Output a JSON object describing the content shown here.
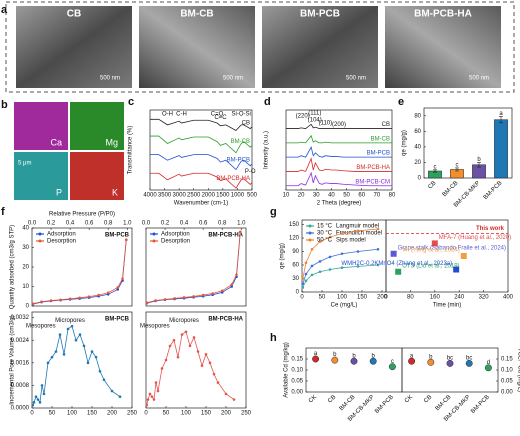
{
  "panels": [
    "a",
    "b",
    "c",
    "d",
    "e",
    "f",
    "g",
    "h"
  ],
  "sem": [
    {
      "label": "CB",
      "scale": "500 nm"
    },
    {
      "label": "BM-CB",
      "scale": "500 nm"
    },
    {
      "label": "BM-PCB",
      "scale": "500 nm"
    },
    {
      "label": "BM-PCB-HA",
      "scale": "500 nm"
    }
  ],
  "eds": [
    "Ca",
    "Mg",
    "P",
    "K"
  ],
  "eds_scale": "5 μm",
  "chart_data": [
    {
      "type": "line",
      "xlabel": "Wavenumber (cm-1)",
      "ylabel": "Transmittance (%)",
      "xlim": [
        4000,
        500
      ],
      "xticks": [
        4000,
        3500,
        3000,
        2500,
        2000,
        1500,
        1000,
        500
      ],
      "ylim": [
        0,
        4.3
      ],
      "label_series": true,
      "x": [
        4000,
        3700,
        3400,
        3000,
        2920,
        2500,
        2000,
        1700,
        1580,
        1400,
        1050,
        870,
        780,
        560,
        500
      ],
      "series": [
        {
          "name": "CB",
          "color": "#222222",
          "values": [
            3.8,
            3.8,
            3.5,
            3.7,
            3.6,
            3.75,
            3.75,
            3.6,
            3.45,
            3.5,
            3.2,
            3.5,
            3.5,
            3.3,
            3.4
          ]
        },
        {
          "name": "BM-CB",
          "color": "#2a9d2a",
          "values": [
            2.9,
            2.9,
            2.5,
            2.8,
            2.7,
            2.85,
            2.85,
            2.6,
            2.4,
            2.5,
            2.0,
            2.5,
            2.6,
            2.3,
            2.4
          ]
        },
        {
          "name": "BM-PCB",
          "color": "#1f4fd1",
          "values": [
            1.9,
            1.9,
            1.6,
            1.85,
            1.75,
            1.9,
            1.9,
            1.7,
            1.5,
            1.6,
            1.1,
            1.55,
            1.6,
            1.3,
            1.4
          ]
        },
        {
          "name": "BM-PCB-HA",
          "color": "#d62728",
          "values": [
            0.9,
            0.9,
            0.55,
            0.85,
            0.75,
            0.9,
            0.9,
            0.7,
            0.5,
            0.6,
            0.1,
            0.55,
            0.6,
            0.3,
            0.4
          ]
        }
      ],
      "annotations": [
        {
          "text": "O-H",
          "x": 3400,
          "y": 4.1
        },
        {
          "text": "C-H",
          "x": 2920,
          "y": 4.1
        },
        {
          "text": "C=O",
          "x": 1700,
          "y": 4.1
        },
        {
          "text": "C=C",
          "x": 1580,
          "y": 3.9
        },
        {
          "text": "Si-O-Si",
          "x": 870,
          "y": 4.1
        },
        {
          "text": "P-O",
          "x": 560,
          "y": 1.0
        }
      ]
    },
    {
      "type": "line",
      "xlabel": "2 Theta (degree)",
      "ylabel": "Intensity (a.u.)",
      "xlim": [
        10,
        80
      ],
      "xticks": [
        10,
        20,
        30,
        40,
        50,
        60,
        70,
        80
      ],
      "ylim": [
        0,
        5.6
      ],
      "label_series": true,
      "x": [
        10,
        18,
        20,
        23,
        26.6,
        28,
        29.4,
        32,
        34,
        36,
        40,
        43,
        48,
        55,
        65,
        80
      ],
      "series": [
        {
          "name": "CB",
          "color": "#222222",
          "values": [
            4.3,
            4.3,
            4.35,
            4.3,
            4.6,
            4.35,
            4.4,
            4.3,
            4.3,
            4.3,
            4.3,
            4.3,
            4.3,
            4.3,
            4.3,
            4.3
          ]
        },
        {
          "name": "BM-CB",
          "color": "#2a9d2a",
          "values": [
            3.3,
            3.3,
            3.35,
            3.3,
            3.8,
            3.35,
            3.45,
            3.3,
            3.3,
            3.35,
            3.3,
            3.3,
            3.3,
            3.3,
            3.3,
            3.3
          ]
        },
        {
          "name": "BM-PCB",
          "color": "#1f4fd1",
          "values": [
            2.3,
            2.3,
            2.4,
            2.3,
            3.0,
            2.4,
            2.6,
            2.35,
            2.3,
            2.4,
            2.35,
            2.35,
            2.3,
            2.3,
            2.3,
            2.3
          ]
        },
        {
          "name": "BM-PCB-HA",
          "color": "#d62728",
          "values": [
            1.3,
            1.3,
            1.4,
            1.3,
            2.2,
            1.4,
            1.9,
            1.4,
            1.35,
            1.45,
            1.4,
            1.4,
            1.35,
            1.3,
            1.3,
            1.3
          ]
        },
        {
          "name": "BM-PCB-CM",
          "color": "#8a2be2",
          "values": [
            0.3,
            0.3,
            0.45,
            0.35,
            1.2,
            0.5,
            1.0,
            0.45,
            0.4,
            0.5,
            0.45,
            0.45,
            0.4,
            0.35,
            0.3,
            0.3
          ]
        }
      ],
      "annotations": [
        {
          "text": "(220)",
          "x": 21,
          "y": 5.2
        },
        {
          "text": "(111)",
          "x": 29,
          "y": 5.4
        },
        {
          "text": "(104)",
          "x": 29,
          "y": 4.9
        },
        {
          "text": "(110)",
          "x": 36,
          "y": 4.7
        },
        {
          "text": "(200)",
          "x": 45,
          "y": 4.6
        }
      ]
    },
    {
      "type": "bar",
      "ylabel": "qe (mg/g)",
      "categories": [
        "CB",
        "BM-CB",
        "BM-CB-MKP",
        "BM-PCB"
      ],
      "values": [
        9,
        11,
        17,
        75
      ],
      "errors": [
        1.5,
        2,
        3,
        4
      ],
      "colors": [
        "#2ca25f",
        "#f28e2b",
        "#6a51a3",
        "#1f77b4"
      ],
      "ylim": [
        0,
        90
      ],
      "yticks": [
        0,
        20,
        40,
        60,
        80
      ],
      "rotate_labels": true,
      "annotations": [
        {
          "text": "c",
          "x": "CB",
          "y": 14
        },
        {
          "text": "c",
          "x": "BM-CB",
          "y": 17
        },
        {
          "text": "b",
          "x": "BM-CB-MKP",
          "y": 24
        },
        {
          "text": "a",
          "x": "BM-PCB",
          "y": 83
        }
      ]
    },
    {
      "type": "line",
      "markers": true,
      "x_axis": "top",
      "title": "BM-PCB",
      "xlabel": "Relative Pressure (P/P0)",
      "ylabel": "Quantity adsorbed (cm3/g STP)",
      "legend": "top-left",
      "xlim": [
        0,
        1.05
      ],
      "xticks": [
        {
          "value": 0,
          "label": "0.0"
        },
        {
          "value": 0.2,
          "label": "0.2"
        },
        {
          "value": 0.4,
          "label": "0.4"
        },
        {
          "value": 0.6,
          "label": "0.6"
        },
        {
          "value": 0.8,
          "label": "0.8"
        },
        {
          "value": 1,
          "label": "1.0"
        }
      ],
      "ylim": [
        0,
        40
      ],
      "yticks": [
        0,
        10,
        20,
        30,
        40
      ],
      "x": [
        0.01,
        0.1,
        0.2,
        0.3,
        0.4,
        0.5,
        0.6,
        0.7,
        0.8,
        0.9,
        0.95,
        0.99
      ],
      "series": [
        {
          "name": "Adsorption",
          "color": "#1f4fd1",
          "values": [
            1,
            2,
            2.6,
            3,
            3.4,
            3.8,
            4.3,
            5,
            6,
            8.5,
            13,
            34
          ]
        },
        {
          "name": "Desorption",
          "color": "#e8553a",
          "values": [
            1.2,
            2.2,
            2.8,
            3.2,
            3.7,
            4.2,
            4.8,
            5.6,
            6.8,
            9.5,
            14,
            34
          ]
        }
      ]
    },
    {
      "type": "line",
      "markers": true,
      "x_axis": "top",
      "title": "BM-PCB-HA",
      "legend": "top-left",
      "xlim": [
        0,
        1.05
      ],
      "xticks": [
        {
          "value": 0,
          "label": "0.0"
        },
        {
          "value": 0.2,
          "label": "0.2"
        },
        {
          "value": 0.4,
          "label": "0.4"
        },
        {
          "value": 0.6,
          "label": "0.6"
        },
        {
          "value": 0.8,
          "label": "0.8"
        },
        {
          "value": 1,
          "label": "1.0"
        }
      ],
      "ylim": [
        0,
        40
      ],
      "x": [
        0.01,
        0.1,
        0.2,
        0.3,
        0.4,
        0.5,
        0.6,
        0.7,
        0.8,
        0.9,
        0.95,
        0.99
      ],
      "series": [
        {
          "name": "Adsorption",
          "color": "#1f4fd1",
          "values": [
            1.5,
            2.6,
            3.2,
            3.6,
            4,
            4.5,
            5,
            5.8,
            7,
            10,
            15,
            38
          ]
        },
        {
          "name": "Desorption",
          "color": "#e8553a",
          "values": [
            1.7,
            2.8,
            3.4,
            3.9,
            4.4,
            4.9,
            5.6,
            6.4,
            7.8,
            11,
            16,
            38
          ]
        }
      ]
    },
    {
      "type": "line",
      "markers": true,
      "title": "BM-PCB",
      "ylabel": "Incremental Pore Volume (cm3/g)",
      "xlim": [
        0,
        250
      ],
      "xticks": [
        0,
        50,
        100,
        150,
        200,
        250
      ],
      "ylim": [
        0,
        0.0034
      ],
      "yticks": [
        {
          "value": 0,
          "label": "0.0000"
        },
        {
          "value": 0.0008,
          "label": "0.0008"
        },
        {
          "value": 0.0016,
          "label": "0.0016"
        },
        {
          "value": 0.0024,
          "label": "0.0024"
        },
        {
          "value": 0.0032,
          "label": "0.0032"
        }
      ],
      "x": [
        2,
        5,
        10,
        15,
        20,
        25,
        30,
        40,
        50,
        60,
        70,
        80,
        90,
        100,
        110,
        120,
        130,
        140,
        150,
        160,
        170,
        180,
        200,
        220
      ],
      "series": [
        {
          "name": "BM-PCB",
          "color": "#1f77b4",
          "values": [
            0.0001,
            0.0002,
            0.0004,
            0.0003,
            0.0002,
            0.0008,
            0.0005,
            0.0016,
            0.0018,
            0.002,
            0.0026,
            0.0019,
            0.0028,
            0.0029,
            0.0024,
            0.0026,
            0.0022,
            0.0016,
            0.002,
            0.0018,
            0.0013,
            0.001,
            0.0006,
            0.0004
          ]
        }
      ],
      "annotations": [
        {
          "text": "Mesopores",
          "x": 22,
          "y": 0.0029
        },
        {
          "text": "Micropores",
          "x": 95,
          "y": 0.0031
        }
      ]
    },
    {
      "type": "line",
      "markers": true,
      "title": "BM-PCB-HA",
      "xlim": [
        0,
        250
      ],
      "xticks": [
        0,
        50,
        100,
        150,
        200,
        250
      ],
      "ylim": [
        0,
        0.0034
      ],
      "x": [
        2,
        5,
        10,
        15,
        20,
        25,
        30,
        40,
        50,
        60,
        70,
        80,
        90,
        100,
        110,
        120,
        130,
        140,
        150,
        160,
        170,
        180,
        200,
        220
      ],
      "series": [
        {
          "name": "BM-PCB-HA",
          "color": "#e8554f",
          "values": [
            0.0001,
            0.0003,
            0.0005,
            0.0004,
            0.0003,
            0.0009,
            0.0006,
            0.0014,
            0.0017,
            0.0022,
            0.0024,
            0.0018,
            0.0026,
            0.0027,
            0.0022,
            0.0025,
            0.002,
            0.0015,
            0.0019,
            0.0016,
            0.0012,
            0.0009,
            0.0005,
            0.0003
          ]
        }
      ],
      "annotations": [
        {
          "text": "Mesopores",
          "x": 22,
          "y": 0.0029
        },
        {
          "text": "Micropores",
          "x": 95,
          "y": 0.0031
        }
      ]
    },
    {
      "type": "line",
      "markers": true,
      "legend": "top-left",
      "xlabel": "Ce (mg/L)",
      "ylabel": "qe (mg/g)",
      "xlim": [
        0,
        210
      ],
      "xticks": [
        0,
        50,
        100,
        150,
        200
      ],
      "ylim": [
        0,
        160
      ],
      "yticks": [
        0,
        30,
        60,
        90,
        120,
        150
      ],
      "x": [
        2,
        10,
        25,
        45,
        70,
        100,
        140,
        190
      ],
      "series": [
        {
          "name": "15 °C",
          "model": "Langmuir model",
          "color": "#3aa89b",
          "values": [
            10,
            25,
            38,
            45,
            50,
            54,
            57,
            60
          ]
        },
        {
          "name": "30 °C",
          "model": "Freundlich model",
          "color": "#3a6fd8",
          "values": [
            18,
            40,
            58,
            68,
            78,
            85,
            90,
            95
          ]
        },
        {
          "name": "50 °C",
          "model": "Sips model",
          "color": "#f08030",
          "values": [
            30,
            65,
            95,
            112,
            122,
            130,
            136,
            140
          ]
        }
      ]
    },
    {
      "type": "scatter",
      "xlabel": "Time (min)",
      "xlim": [
        0,
        400
      ],
      "xticks": [
        0,
        80,
        160,
        240,
        320,
        400
      ],
      "ylim": [
        0,
        160
      ],
      "reference": {
        "label": "This work",
        "y": 130,
        "color": "#d62728"
      },
      "points": [
        {
          "name": "MFA-7 (Huang et al., 2020)",
          "x": 160,
          "y": 108,
          "color": "#e84a4a"
        },
        {
          "name": "Grape stalk (Sabando Fraile et al., 2024)",
          "x": 25,
          "y": 85,
          "color": "#5a5ad6"
        },
        {
          "name": "MI (Yang et al., 2024)",
          "x": 255,
          "y": 80,
          "color": "#f0a040"
        },
        {
          "name": "OTS (Liu et al., 2019)",
          "x": 40,
          "y": 45,
          "color": "#2ca25f"
        },
        {
          "name": "WMH2C-0.2KMnO4 (Zhang et al., 2023a)",
          "x": 230,
          "y": 50,
          "color": "#1f4fd1"
        }
      ]
    },
    {
      "type": "scatter",
      "ylabel": "Available Cd (mg/kg)",
      "categories": [
        "CK",
        "CB",
        "BM-CB",
        "BM-CB-MKP",
        "BM-PCB"
      ],
      "values": [
        0.15,
        0.145,
        0.14,
        0.14,
        0.115
      ],
      "colors": [
        "#d62728",
        "#f28e2b",
        "#6a51a3",
        "#1f77b4",
        "#2ca25f"
      ],
      "ylim": [
        0,
        0.2
      ],
      "yticks": [
        {
          "value": 0,
          "label": "0.00"
        },
        {
          "value": 0.05,
          "label": "0.05"
        },
        {
          "value": 0.1,
          "label": "0.10"
        },
        {
          "value": 0.15,
          "label": "0.15"
        }
      ],
      "rotate_labels": true,
      "annotations": [
        {
          "text": "a",
          "x": "CK",
          "y": 0.175
        },
        {
          "text": "b",
          "x": "CB",
          "y": 0.17
        },
        {
          "text": "b",
          "x": "BM-CB",
          "y": 0.165
        },
        {
          "text": "b",
          "x": "BM-CB-MKP",
          "y": 0.165
        },
        {
          "text": "c",
          "x": "BM-PCB",
          "y": 0.14
        }
      ]
    },
    {
      "type": "scatter",
      "y_side": "right",
      "ylabel": "TCLP-Cd (mg/L)",
      "categories": [
        "CK",
        "CB",
        "BM-CB",
        "BM-CB-MKP",
        "BM-PCB"
      ],
      "values": [
        0.14,
        0.135,
        0.13,
        0.13,
        0.11
      ],
      "colors": [
        "#d62728",
        "#f28e2b",
        "#6a51a3",
        "#1f77b4",
        "#2ca25f"
      ],
      "ylim": [
        0,
        0.2
      ],
      "yticks": [
        {
          "value": 0,
          "label": "0.00"
        },
        {
          "value": 0.05,
          "label": "0.05"
        },
        {
          "value": 0.1,
          "label": "0.10"
        },
        {
          "value": 0.15,
          "label": "0.15"
        }
      ],
      "rotate_labels": true,
      "annotations": [
        {
          "text": "a",
          "x": "CK",
          "y": 0.165
        },
        {
          "text": "b",
          "x": "CB",
          "y": 0.16
        },
        {
          "text": "bc",
          "x": "BM-CB",
          "y": 0.155
        },
        {
          "text": "bc",
          "x": "BM-CB-MKP",
          "y": 0.155
        },
        {
          "text": "d",
          "x": "BM-PCB",
          "y": 0.135
        }
      ]
    }
  ]
}
